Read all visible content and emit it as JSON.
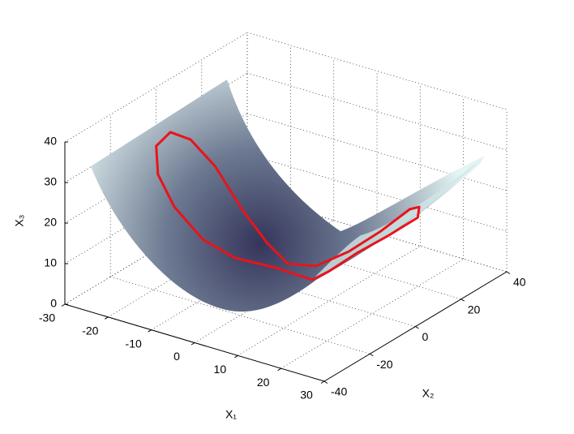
{
  "chart_data": {
    "type": "surface3d",
    "xlabel": "X₁",
    "ylabel": "X₂",
    "zlabel": "X₃",
    "xlim": [
      -30,
      30
    ],
    "xticks": [
      -30,
      -20,
      -10,
      0,
      10,
      20,
      30
    ],
    "ylim": [
      -40,
      40
    ],
    "yticks": [
      -40,
      -20,
      0,
      20,
      40
    ],
    "zlim": [
      0,
      40
    ],
    "zticks": [
      0,
      10,
      20,
      30,
      40
    ],
    "grid": true,
    "curve": {
      "color": "#e8141a",
      "x1": [
        7.2,
        2.6,
        -4.1,
        -9.7,
        -15.2,
        -17.7,
        -19.0,
        -16.2,
        -12.2,
        -7.8,
        -3.5,
        0.3,
        3.5,
        7.4,
        10.8,
        14.7,
        19.8,
        23.8,
        24.2,
        19.1,
        13.5,
        9.7,
        7.2
      ],
      "x2": [
        -2.1,
        -9.4,
        -14.5,
        -18.0,
        -20.1,
        -22.5,
        -20.8,
        -19.9,
        -18.6,
        -16.2,
        -12.1,
        -8.6,
        -5.7,
        -0.7,
        7.1,
        13.8,
        16.8,
        13.4,
        12.0,
        9.1,
        5.5,
        0.2,
        -2.1
      ],
      "x3": [
        5,
        9,
        11,
        15,
        22,
        30,
        36,
        40,
        39,
        33,
        22,
        14,
        9,
        8,
        10,
        14,
        20,
        23,
        21,
        16,
        11,
        7,
        5
      ]
    }
  }
}
